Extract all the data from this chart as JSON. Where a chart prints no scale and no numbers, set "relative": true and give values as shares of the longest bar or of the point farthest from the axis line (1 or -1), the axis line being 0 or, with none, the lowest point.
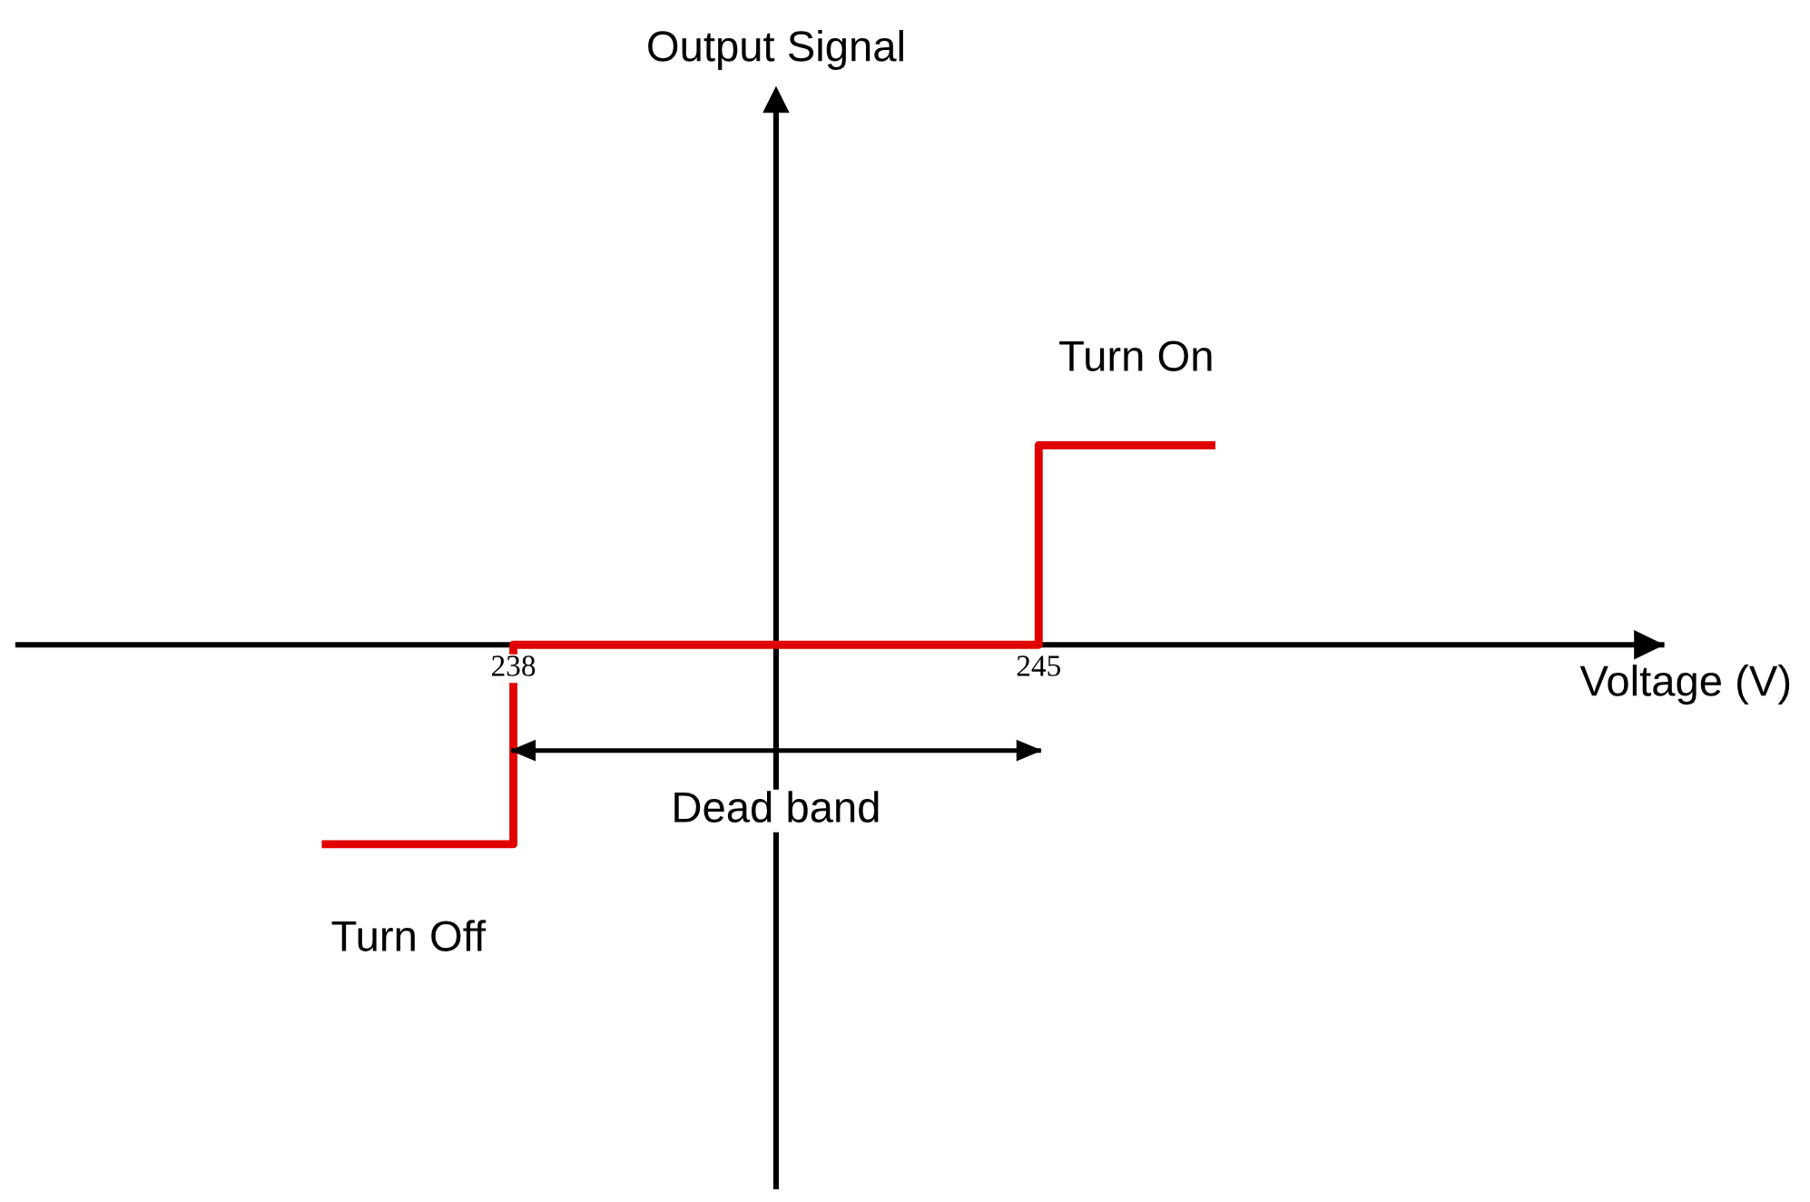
{
  "chart_data": {
    "type": "line",
    "relative": true,
    "xlabel": "Voltage (V)",
    "xlim": [
      231.4,
      253.3
    ],
    "xticks": [
      238,
      245
    ],
    "series": [
      {
        "color": "#e00000",
        "x": [
          235.5,
          238,
          238,
          245,
          245,
          247.3
        ],
        "values": [
          -1,
          -1,
          0,
          0,
          1,
          1
        ]
      },
      {
        "name": "Dead band",
        "color": "#000000",
        "x": [
          238,
          245
        ],
        "values": [
          -0.53,
          -0.53
        ]
      }
    ],
    "ref_lines": [
      {
        "axis": "x",
        "value": 241.5,
        "color": "#000000",
        "line_style": "solid"
      }
    ],
    "annotations": [
      {
        "text": "Turn On",
        "x": 246.3,
        "y": 1
      },
      {
        "text": "Turn Off",
        "x": 236.6,
        "y": -1
      },
      "Output Signal"
    ],
    "line_style": "solid",
    "marker": "none",
    "grid": false,
    "legend": false
  }
}
